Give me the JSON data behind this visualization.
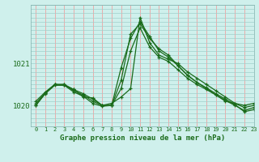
{
  "title": "Graphe pression niveau de la mer (hPa)",
  "bg_color": "#cff0ec",
  "grid_color_v": "#f0a0a0",
  "grid_color_h": "#a0d0cc",
  "line_color": "#1a6b1a",
  "yticks": [
    1020,
    1021
  ],
  "xlim": [
    -0.5,
    23
  ],
  "ylim": [
    1019.5,
    1022.4
  ],
  "xticks": [
    0,
    1,
    2,
    3,
    4,
    5,
    6,
    7,
    8,
    9,
    10,
    11,
    12,
    13,
    14,
    15,
    16,
    17,
    18,
    19,
    20,
    21,
    22,
    23
  ],
  "series1": [
    1020.05,
    1020.3,
    1020.5,
    1020.5,
    1020.35,
    1020.25,
    1020.1,
    1020.0,
    1020.05,
    1020.2,
    1020.4,
    1022.1,
    1021.5,
    1021.2,
    1021.1,
    1021.0,
    1020.8,
    1020.65,
    1020.5,
    1020.35,
    1020.2,
    1020.05,
    1020.0,
    1020.05
  ],
  "series2": [
    1020.1,
    1020.32,
    1020.5,
    1020.48,
    1020.38,
    1020.28,
    1020.15,
    1020.0,
    1020.0,
    1020.4,
    1021.3,
    1021.85,
    1021.4,
    1021.15,
    1021.05,
    1020.85,
    1020.65,
    1020.5,
    1020.38,
    1020.25,
    1020.12,
    1020.0,
    1019.88,
    1019.95
  ],
  "series3": [
    1020.0,
    1020.28,
    1020.48,
    1020.48,
    1020.32,
    1020.22,
    1020.05,
    1019.98,
    1020.0,
    1020.6,
    1021.7,
    1021.95,
    1021.6,
    1021.35,
    1021.2,
    1020.95,
    1020.72,
    1020.55,
    1020.42,
    1020.28,
    1020.15,
    1020.02,
    1019.85,
    1019.9
  ],
  "series4": [
    1020.0,
    1020.3,
    1020.5,
    1020.5,
    1020.38,
    1020.2,
    1020.18,
    1020.0,
    1020.0,
    1020.9,
    1021.6,
    1022.0,
    1021.65,
    1021.3,
    1021.15,
    1020.95,
    1020.72,
    1020.55,
    1020.4,
    1020.25,
    1020.1,
    1020.05,
    1019.95,
    1020.0
  ]
}
